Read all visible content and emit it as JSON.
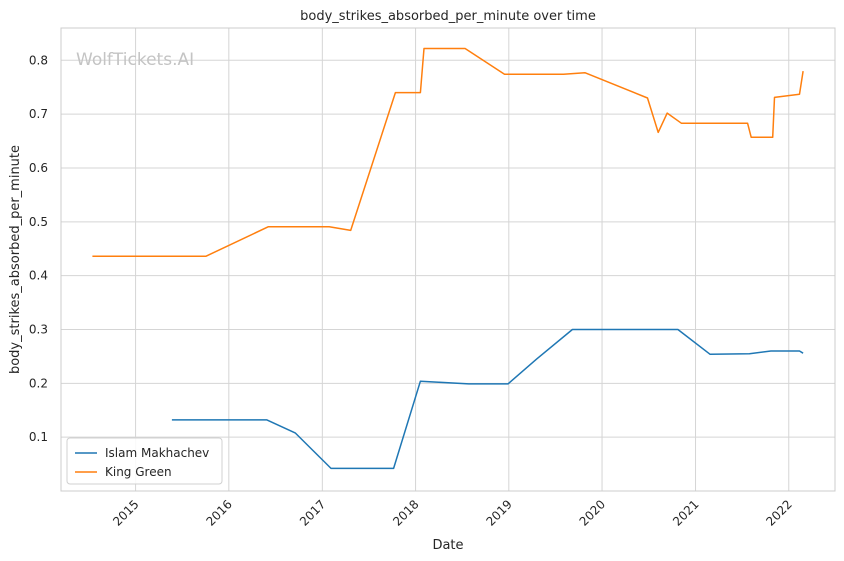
{
  "chart_data": {
    "type": "line",
    "title": "body_strikes_absorbed_per_minute over time",
    "xlabel": "Date",
    "ylabel": "body_strikes_absorbed_per_minute",
    "watermark": "WolfTickets.AI",
    "xlim": [
      "2014-03-15",
      "2022-07-01"
    ],
    "ylim": [
      0.0,
      0.86
    ],
    "x_ticks": [
      "2015",
      "2016",
      "2017",
      "2018",
      "2019",
      "2020",
      "2021",
      "2022"
    ],
    "y_ticks": [
      "0.1",
      "0.2",
      "0.3",
      "0.4",
      "0.5",
      "0.6",
      "0.7",
      "0.8"
    ],
    "grid": true,
    "legend_position": "lower-left",
    "series": [
      {
        "name": "Islam Makhachev",
        "color": "#1f77b4",
        "points": [
          [
            "2015-05-23",
            0.132
          ],
          [
            "2016-05-29",
            0.132
          ],
          [
            "2016-09-17",
            0.108
          ],
          [
            "2017-02-04",
            0.042
          ],
          [
            "2017-10-07",
            0.042
          ],
          [
            "2018-01-20",
            0.204
          ],
          [
            "2018-07-28",
            0.199
          ],
          [
            "2018-12-29",
            0.199
          ],
          [
            "2019-04-20",
            0.245
          ],
          [
            "2019-09-07",
            0.3
          ],
          [
            "2020-10-24",
            0.3
          ],
          [
            "2021-02-27",
            0.254
          ],
          [
            "2021-07-31",
            0.255
          ],
          [
            "2021-10-23",
            0.26
          ],
          [
            "2022-02-12",
            0.26
          ],
          [
            "2022-02-26",
            0.256
          ]
        ]
      },
      {
        "name": "King Green",
        "color": "#ff7f0e",
        "points": [
          [
            "2014-07-16",
            0.436
          ],
          [
            "2015-10-03",
            0.436
          ],
          [
            "2016-06-04",
            0.491
          ],
          [
            "2017-01-28",
            0.491
          ],
          [
            "2017-04-22",
            0.484
          ],
          [
            "2017-10-14",
            0.74
          ],
          [
            "2018-01-20",
            0.74
          ],
          [
            "2018-02-03",
            0.822
          ],
          [
            "2018-07-14",
            0.822
          ],
          [
            "2018-12-15",
            0.774
          ],
          [
            "2019-08-03",
            0.774
          ],
          [
            "2019-10-26",
            0.777
          ],
          [
            "2020-06-27",
            0.73
          ],
          [
            "2020-08-08",
            0.666
          ],
          [
            "2020-09-12",
            0.702
          ],
          [
            "2020-11-07",
            0.683
          ],
          [
            "2021-07-24",
            0.683
          ],
          [
            "2021-08-07",
            0.657
          ],
          [
            "2021-10-30",
            0.657
          ],
          [
            "2021-11-06",
            0.731
          ],
          [
            "2022-02-12",
            0.737
          ],
          [
            "2022-02-26",
            0.78
          ]
        ]
      }
    ]
  }
}
